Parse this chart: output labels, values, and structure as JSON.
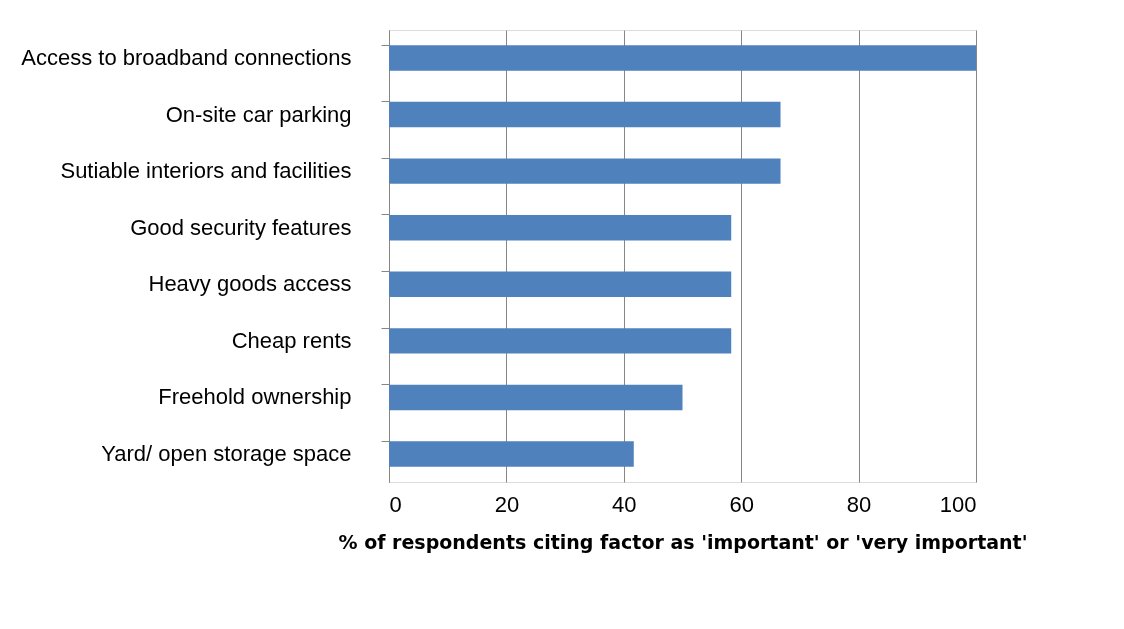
{
  "chart_data": {
    "type": "bar",
    "orientation": "horizontal",
    "xlabel": "% of respondents citing factor as 'important' or 'very important'",
    "categories": [
      "Access to broadband connections",
      "On-site car parking",
      "Sutiable interiors and facilities",
      "Good security features",
      "Heavy goods access",
      "Cheap rents",
      "Freehold ownership",
      "Yard/ open storage space"
    ],
    "values": [
      100,
      66.7,
      66.7,
      58.3,
      58.3,
      58.3,
      50,
      41.7
    ],
    "color": "#4f81bd",
    "xlim": [
      0,
      100
    ],
    "xticks": [
      0,
      20,
      40,
      60,
      80,
      100
    ],
    "grid": "x"
  }
}
